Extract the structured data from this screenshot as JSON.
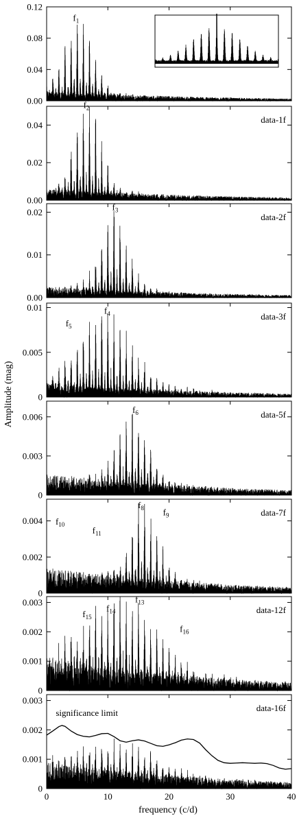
{
  "chart_data": {
    "type": "line",
    "xlabel": "frequency (c/d)",
    "ylabel": "Amplitude (mag)",
    "xlim": [
      0,
      40
    ],
    "x_ticks": [
      0,
      10,
      20,
      30,
      40
    ],
    "panels": [
      {
        "label": "",
        "ylim": [
          0,
          0.12
        ],
        "y_ticks": [
          0.0,
          0.04,
          0.08,
          0.12
        ],
        "y_tick_labels": [
          "0.00",
          "0.04",
          "0.08",
          "0.12"
        ],
        "peak_center": 5.2,
        "peak_amplitude": 0.094,
        "envelope_width": 3.2,
        "noise": 0.012,
        "inset": true,
        "annotations": [
          {
            "base": "f",
            "sub": "1",
            "x": 4.8,
            "y": 0.102
          }
        ]
      },
      {
        "label": "data-1f",
        "ylim": [
          0,
          0.05
        ],
        "y_ticks": [
          0.0,
          0.02,
          0.04
        ],
        "y_tick_labels": [
          "0.00",
          "0.02",
          "0.04"
        ],
        "peak_center": 6.6,
        "peak_amplitude": 0.046,
        "envelope_width": 3.0,
        "noise": 0.006,
        "annotations": [
          {
            "base": "f",
            "sub": "2",
            "x": 6.5,
            "y": 0.049
          }
        ]
      },
      {
        "label": "data-2f",
        "ylim": [
          0,
          0.022
        ],
        "y_ticks": [
          0.0,
          0.01,
          0.02
        ],
        "y_tick_labels": [
          "0.00",
          "0.01",
          "0.02"
        ],
        "peak_center": 11.0,
        "peak_amplitude": 0.0195,
        "envelope_width": 3.0,
        "noise": 0.0025,
        "annotations": [
          {
            "base": "f",
            "sub": "3",
            "x": 11.2,
            "y": 0.0205
          }
        ]
      },
      {
        "label": "data-3f",
        "ylim": [
          0,
          0.0105
        ],
        "y_ticks": [
          0,
          0.005,
          0.01
        ],
        "y_tick_labels": [
          "0",
          "0.005",
          "0.01"
        ],
        "peak_center": 9.5,
        "peak_amplitude": 0.0088,
        "envelope_width": 6.0,
        "noise": 0.0015,
        "annotations": [
          {
            "base": "f",
            "sub": "5",
            "x": 3.6,
            "y": 0.0079
          },
          {
            "base": "f",
            "sub": "4",
            "x": 9.9,
            "y": 0.0093
          }
        ]
      },
      {
        "label": "data-5f",
        "ylim": [
          0,
          0.0072
        ],
        "y_ticks": [
          0,
          0.003,
          0.006
        ],
        "y_tick_labels": [
          "0",
          "0.003",
          "0.006"
        ],
        "peak_center": 14.0,
        "peak_amplitude": 0.0058,
        "envelope_width": 3.6,
        "noise": 0.0016,
        "annotations": [
          {
            "base": "f",
            "sub": "6",
            "x": 14.5,
            "y": 0.0063
          }
        ]
      },
      {
        "label": "data-7f",
        "ylim": [
          0,
          0.0052
        ],
        "y_ticks": [
          0,
          0.002,
          0.004
        ],
        "y_tick_labels": [
          "0",
          "0.002",
          "0.004"
        ],
        "peak_center": 16.0,
        "peak_amplitude": 0.0046,
        "envelope_width": 3.2,
        "noise": 0.0014,
        "annotations": [
          {
            "base": "f",
            "sub": "10",
            "x": 2.2,
            "y": 0.0038
          },
          {
            "base": "f",
            "sub": "11",
            "x": 8.2,
            "y": 0.0033
          },
          {
            "base": "f",
            "sub": "8",
            "x": 15.4,
            "y": 0.0047
          },
          {
            "base": "f",
            "sub": "9",
            "x": 19.5,
            "y": 0.0043
          }
        ]
      },
      {
        "label": "data-12f",
        "ylim": [
          0,
          0.0032
        ],
        "y_ticks": [
          0,
          0.001,
          0.002,
          0.003
        ],
        "y_tick_labels": [
          "0",
          "0.001",
          "0.002",
          "0.003"
        ],
        "peak_center": 12.0,
        "peak_amplitude": 0.0026,
        "envelope_width": 8.0,
        "noise": 0.0011,
        "annotations": [
          {
            "base": "f",
            "sub": "15",
            "x": 6.6,
            "y": 0.0025
          },
          {
            "base": "f",
            "sub": "14",
            "x": 10.5,
            "y": 0.0027
          },
          {
            "base": "f",
            "sub": "13",
            "x": 15.2,
            "y": 0.003
          },
          {
            "base": "f",
            "sub": "16",
            "x": 22.5,
            "y": 0.002
          }
        ]
      },
      {
        "label": "data-16f",
        "ylim": [
          0,
          0.0032
        ],
        "y_ticks": [
          0,
          0.001,
          0.002,
          0.003
        ],
        "y_tick_labels": [
          "0",
          "0.001",
          "0.002",
          "0.003"
        ],
        "peak_center": 12.0,
        "peak_amplitude": 0.0012,
        "envelope_width": 9.0,
        "noise": 0.0009,
        "annotations": [],
        "significance_label": "significance limit",
        "significance_limit": {
          "x": [
            0,
            1,
            2,
            2.5,
            3,
            4,
            5,
            6,
            7,
            8,
            9,
            10,
            11,
            12,
            13,
            14,
            15,
            16,
            17,
            18,
            19,
            20,
            21,
            22,
            23,
            24,
            25,
            26,
            27,
            28,
            29,
            30,
            31,
            32,
            33,
            34,
            35,
            36,
            37,
            38,
            39,
            40
          ],
          "y": [
            0.00182,
            0.00196,
            0.00211,
            0.00215,
            0.00212,
            0.00196,
            0.00184,
            0.00178,
            0.00176,
            0.00181,
            0.00187,
            0.00188,
            0.00177,
            0.00163,
            0.00158,
            0.00163,
            0.00166,
            0.00162,
            0.00154,
            0.00146,
            0.00144,
            0.00149,
            0.00156,
            0.00165,
            0.00169,
            0.00167,
            0.00155,
            0.00132,
            0.00112,
            0.00096,
            0.00088,
            0.00086,
            0.00087,
            0.00088,
            0.00087,
            0.00086,
            0.00087,
            0.00085,
            0.00079,
            0.0007,
            0.00066,
            0.00068
          ]
        }
      }
    ]
  }
}
